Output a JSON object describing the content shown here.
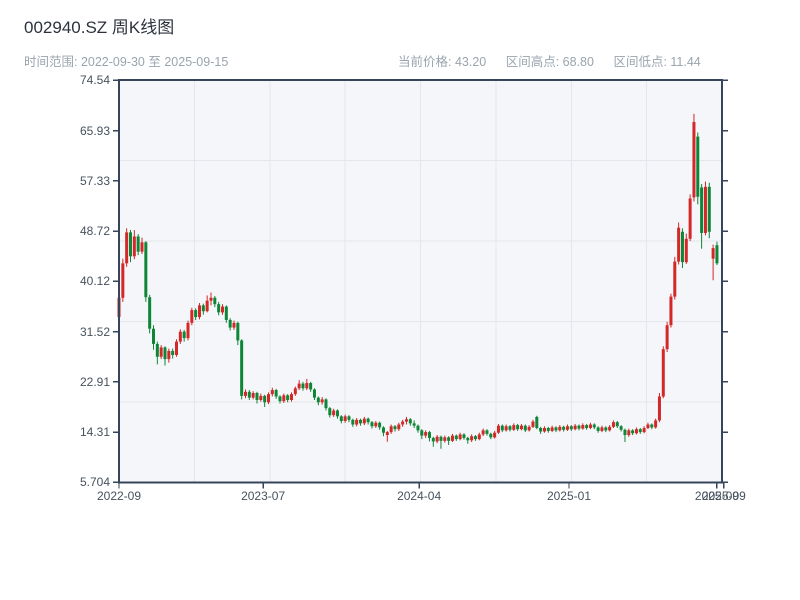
{
  "header": {
    "title": "002940.SZ 周K线图",
    "date_range_label": "时间范围: 2022-09-30 至 2025-09-15",
    "stats": [
      {
        "label": "当前价格",
        "value": "43.20",
        "text": "当前价格: 43.20"
      },
      {
        "label": "区间高点",
        "value": "68.80",
        "text": "区间高点: 68.80"
      },
      {
        "label": "区间低点",
        "value": "11.44",
        "text": "区间低点: 11.44"
      }
    ]
  },
  "chart_data": {
    "type": "candlestick",
    "title": "002940.SZ 周K线图",
    "period": "weekly",
    "date_start": "2022-09-30",
    "date_end": "2025-09-15",
    "current_price": 43.2,
    "range_high": 68.8,
    "range_low": 11.44,
    "y_min": 5.704,
    "y_max": 74.54,
    "y_ticks": [
      "74.54",
      "65.93",
      "57.33",
      "48.72",
      "40.12",
      "31.52",
      "22.91",
      "14.31",
      "5.704"
    ],
    "x_ticks": [
      {
        "label": "2022-09",
        "week": 0
      },
      {
        "label": "2023-07",
        "week": 37.6
      },
      {
        "label": "2024-04",
        "week": 78.3
      },
      {
        "label": "2025-01",
        "week": 117.4
      },
      {
        "label": "2025-09",
        "week": 156.0
      },
      {
        "label": "2025-09",
        "week": 157.8
      }
    ],
    "grid": {
      "h_divisions": 5,
      "v_divisions": 8
    },
    "colors": {
      "up": "#d42727",
      "down": "#0e8637",
      "axis": "#36455a",
      "grid": "#e3e7ec",
      "plot_bg": "#f4f6f9",
      "tick_label": "#47525e",
      "muted": "#9aa4ae",
      "title": "#2c323c"
    },
    "candles": [
      [
        34.0,
        37.8,
        31.6,
        37.3
      ],
      [
        37.3,
        44.0,
        36.6,
        43.2
      ],
      [
        43.2,
        49.2,
        42.6,
        48.5
      ],
      [
        48.5,
        48.9,
        43.4,
        44.4
      ],
      [
        44.4,
        48.9,
        43.9,
        47.8
      ],
      [
        47.8,
        48.2,
        44.6,
        45.2
      ],
      [
        45.2,
        47.6,
        44.8,
        46.8
      ],
      [
        46.8,
        47.0,
        36.6,
        37.4
      ],
      [
        37.4,
        37.8,
        31.2,
        32.0
      ],
      [
        32.0,
        32.6,
        28.4,
        29.4
      ],
      [
        29.4,
        29.8,
        25.9,
        27.2
      ],
      [
        27.2,
        29.2,
        26.8,
        28.8
      ],
      [
        28.8,
        29.0,
        25.7,
        26.8
      ],
      [
        26.8,
        28.6,
        26.2,
        28.2
      ],
      [
        28.2,
        28.6,
        26.9,
        27.5
      ],
      [
        27.5,
        30.2,
        27.2,
        29.8
      ],
      [
        29.8,
        31.9,
        29.4,
        31.5
      ],
      [
        31.5,
        31.8,
        29.8,
        30.4
      ],
      [
        30.4,
        33.4,
        30.0,
        33.0
      ],
      [
        33.0,
        35.6,
        32.6,
        35.2
      ],
      [
        35.2,
        35.5,
        33.5,
        34.0
      ],
      [
        34.0,
        36.4,
        33.6,
        36.0
      ],
      [
        36.0,
        36.3,
        34.4,
        35.0
      ],
      [
        35.0,
        37.7,
        34.8,
        36.8
      ],
      [
        36.8,
        38.2,
        36.0,
        37.3
      ],
      [
        37.3,
        37.6,
        35.7,
        36.2
      ],
      [
        36.2,
        36.6,
        34.3,
        34.8
      ],
      [
        34.8,
        36.2,
        34.4,
        35.8
      ],
      [
        35.8,
        36.0,
        33.0,
        33.5
      ],
      [
        33.5,
        33.8,
        31.7,
        32.2
      ],
      [
        32.2,
        33.4,
        31.8,
        33.0
      ],
      [
        33.0,
        33.2,
        29.2,
        30.0
      ],
      [
        30.0,
        30.2,
        19.9,
        20.5
      ],
      [
        20.5,
        21.6,
        20.1,
        21.2
      ],
      [
        21.2,
        21.5,
        19.8,
        20.2
      ],
      [
        20.2,
        21.3,
        19.9,
        21.0
      ],
      [
        21.0,
        21.2,
        19.2,
        19.8
      ],
      [
        19.8,
        20.9,
        19.5,
        20.5
      ],
      [
        20.5,
        20.7,
        18.6,
        19.4
      ],
      [
        19.4,
        21.1,
        19.1,
        20.8
      ],
      [
        20.8,
        21.9,
        20.4,
        21.5
      ],
      [
        21.5,
        21.7,
        20.0,
        20.4
      ],
      [
        20.4,
        20.6,
        19.2,
        19.6
      ],
      [
        19.6,
        20.9,
        19.3,
        20.6
      ],
      [
        20.6,
        20.8,
        19.4,
        19.8
      ],
      [
        19.8,
        21.1,
        19.5,
        20.8
      ],
      [
        20.8,
        22.1,
        20.5,
        21.8
      ],
      [
        21.8,
        23.2,
        21.5,
        22.6
      ],
      [
        22.6,
        22.9,
        21.4,
        21.8
      ],
      [
        21.8,
        23.4,
        21.5,
        22.7
      ],
      [
        22.7,
        22.9,
        21.2,
        21.6
      ],
      [
        21.6,
        21.8,
        19.8,
        20.2
      ],
      [
        20.2,
        20.4,
        18.9,
        19.4
      ],
      [
        19.4,
        20.3,
        19.0,
        19.9
      ],
      [
        19.9,
        20.1,
        18.0,
        18.4
      ],
      [
        18.4,
        18.6,
        16.8,
        17.2
      ],
      [
        17.2,
        18.3,
        16.9,
        18.0
      ],
      [
        18.0,
        18.2,
        16.6,
        17.0
      ],
      [
        17.0,
        17.2,
        15.8,
        16.2
      ],
      [
        16.2,
        17.3,
        15.9,
        17.0
      ],
      [
        17.0,
        17.2,
        16.0,
        16.4
      ],
      [
        16.4,
        16.6,
        15.2,
        15.6
      ],
      [
        15.6,
        16.7,
        15.3,
        16.4
      ],
      [
        16.4,
        16.6,
        15.4,
        15.8
      ],
      [
        15.8,
        16.9,
        15.5,
        16.6
      ],
      [
        16.6,
        16.8,
        15.6,
        16.0
      ],
      [
        16.0,
        16.2,
        14.9,
        15.3
      ],
      [
        15.3,
        16.2,
        15.0,
        15.9
      ],
      [
        15.9,
        16.1,
        14.7,
        15.1
      ],
      [
        15.1,
        15.3,
        13.6,
        14.2
      ],
      [
        13.8,
        14.5,
        12.65,
        14.3
      ],
      [
        14.3,
        15.6,
        14.0,
        15.3
      ],
      [
        15.3,
        15.5,
        14.4,
        14.8
      ],
      [
        14.8,
        15.9,
        14.5,
        15.6
      ],
      [
        15.6,
        16.4,
        15.2,
        16.1
      ],
      [
        16.1,
        16.9,
        15.6,
        16.5
      ],
      [
        16.5,
        16.7,
        15.4,
        15.8
      ],
      [
        15.8,
        16.3,
        15.0,
        15.4
      ],
      [
        15.4,
        15.6,
        14.2,
        14.6
      ],
      [
        14.6,
        14.8,
        13.1,
        13.7
      ],
      [
        13.7,
        14.6,
        13.3,
        14.3
      ],
      [
        14.3,
        14.5,
        12.7,
        13.3
      ],
      [
        13.3,
        13.5,
        11.8,
        12.7
      ],
      [
        12.7,
        13.8,
        12.4,
        13.5
      ],
      [
        13.5,
        13.7,
        11.44,
        12.8
      ],
      [
        12.8,
        13.7,
        12.5,
        13.4
      ],
      [
        13.4,
        13.6,
        12.1,
        12.8
      ],
      [
        12.8,
        14.0,
        12.6,
        13.7
      ],
      [
        13.7,
        13.9,
        12.8,
        13.1
      ],
      [
        13.1,
        14.2,
        12.9,
        13.9
      ],
      [
        13.9,
        14.1,
        13.0,
        13.3
      ],
      [
        13.3,
        13.5,
        12.3,
        12.9
      ],
      [
        12.9,
        13.9,
        12.6,
        13.6
      ],
      [
        13.6,
        13.8,
        12.8,
        13.1
      ],
      [
        13.1,
        14.2,
        12.9,
        13.9
      ],
      [
        13.9,
        14.9,
        13.6,
        14.6
      ],
      [
        14.6,
        14.8,
        13.7,
        14.0
      ],
      [
        14.0,
        14.2,
        13.1,
        13.4
      ],
      [
        13.4,
        14.5,
        13.2,
        14.2
      ],
      [
        14.2,
        15.7,
        14.0,
        15.4
      ],
      [
        15.4,
        15.6,
        14.3,
        14.6
      ],
      [
        14.6,
        15.6,
        14.4,
        15.3
      ],
      [
        15.3,
        15.5,
        14.4,
        14.7
      ],
      [
        14.7,
        15.8,
        14.5,
        15.5
      ],
      [
        15.5,
        15.7,
        14.5,
        14.8
      ],
      [
        14.8,
        15.7,
        14.6,
        15.4
      ],
      [
        15.4,
        15.6,
        14.3,
        14.6
      ],
      [
        14.6,
        15.5,
        14.4,
        15.2
      ],
      [
        15.2,
        16.4,
        15.0,
        16.1
      ],
      [
        16.9,
        17.1,
        14.8,
        15.0
      ],
      [
        15.0,
        15.2,
        14.0,
        14.4
      ],
      [
        14.4,
        15.3,
        14.2,
        15.0
      ],
      [
        15.0,
        15.2,
        14.2,
        14.5
      ],
      [
        14.5,
        15.4,
        14.3,
        15.1
      ],
      [
        15.1,
        15.3,
        14.3,
        14.6
      ],
      [
        14.6,
        15.5,
        14.4,
        15.2
      ],
      [
        15.2,
        15.4,
        14.4,
        14.7
      ],
      [
        14.7,
        15.6,
        14.5,
        15.3
      ],
      [
        15.3,
        15.5,
        14.5,
        14.8
      ],
      [
        14.8,
        15.7,
        14.6,
        15.4
      ],
      [
        15.4,
        15.6,
        14.6,
        14.9
      ],
      [
        14.9,
        15.8,
        14.7,
        15.5
      ],
      [
        15.5,
        15.7,
        14.7,
        15.0
      ],
      [
        15.0,
        15.9,
        14.8,
        15.6
      ],
      [
        15.6,
        15.8,
        14.8,
        15.1
      ],
      [
        15.1,
        15.3,
        14.2,
        14.5
      ],
      [
        14.5,
        15.4,
        14.3,
        15.1
      ],
      [
        15.1,
        15.3,
        14.3,
        14.6
      ],
      [
        14.6,
        15.5,
        14.4,
        15.2
      ],
      [
        15.2,
        16.3,
        15.0,
        16.0
      ],
      [
        16.0,
        16.2,
        15.0,
        15.3
      ],
      [
        15.3,
        15.5,
        14.4,
        14.7
      ],
      [
        14.7,
        14.9,
        12.6,
        13.8
      ],
      [
        13.8,
        14.9,
        13.5,
        14.6
      ],
      [
        14.6,
        14.8,
        13.8,
        14.1
      ],
      [
        14.1,
        15.1,
        13.9,
        14.8
      ],
      [
        14.8,
        15.0,
        14.0,
        14.3
      ],
      [
        14.3,
        15.3,
        14.1,
        15.0
      ],
      [
        15.0,
        15.9,
        14.8,
        15.6
      ],
      [
        15.6,
        15.8,
        14.8,
        15.1
      ],
      [
        15.1,
        16.6,
        14.9,
        16.3
      ],
      [
        16.3,
        21.0,
        16.0,
        20.4
      ],
      [
        20.4,
        29.0,
        20.1,
        28.5
      ],
      [
        28.5,
        33.2,
        28.0,
        32.6
      ],
      [
        32.6,
        38.0,
        32.2,
        37.5
      ],
      [
        37.5,
        44.3,
        37.0,
        43.5
      ],
      [
        43.5,
        50.2,
        43.0,
        49.3
      ],
      [
        48.6,
        49.2,
        42.4,
        43.4
      ],
      [
        43.4,
        48.3,
        43.1,
        47.4
      ],
      [
        47.4,
        55.0,
        47.0,
        54.3
      ],
      [
        54.5,
        68.8,
        53.8,
        67.4
      ],
      [
        64.9,
        65.6,
        53.3,
        54.6
      ],
      [
        56.2,
        56.8,
        45.7,
        48.4
      ],
      [
        48.4,
        57.2,
        48.0,
        56.3
      ],
      [
        56.3,
        57.0,
        47.5,
        48.6
      ],
      [
        44.0,
        46.4,
        40.3,
        45.8
      ],
      [
        46.3,
        46.9,
        42.9,
        43.2
      ]
    ]
  }
}
